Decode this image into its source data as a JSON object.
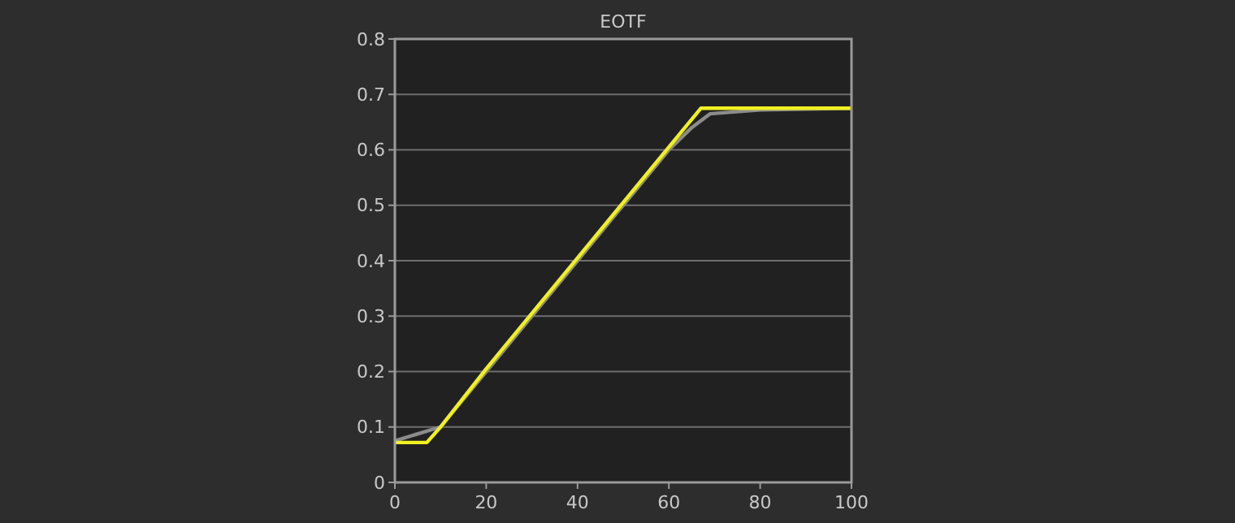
{
  "chart_data": {
    "type": "line",
    "title": "EOTF",
    "xlim": [
      0,
      100
    ],
    "xticks": [
      0,
      20,
      40,
      60,
      80,
      100
    ],
    "ylim": [
      0,
      0.8
    ],
    "yticks": [
      0,
      0.1,
      0.2,
      0.3,
      0.4,
      0.5,
      0.6,
      0.7,
      0.8
    ],
    "grid": "y",
    "series": [
      {
        "color": "#8c8c8c",
        "x": [
          0,
          10,
          20,
          30,
          40,
          50,
          60,
          65,
          69,
          80,
          100
        ],
        "values": [
          0.075,
          0.1,
          0.2,
          0.3,
          0.4,
          0.5,
          0.6,
          0.64,
          0.665,
          0.672,
          0.675
        ]
      },
      {
        "color": "#f0f020",
        "x": [
          0,
          7,
          10,
          20,
          30,
          40,
          50,
          60,
          67,
          80,
          100
        ],
        "values": [
          0.072,
          0.072,
          0.1,
          0.205,
          0.305,
          0.405,
          0.505,
          0.605,
          0.675,
          0.675,
          0.675
        ]
      }
    ]
  }
}
